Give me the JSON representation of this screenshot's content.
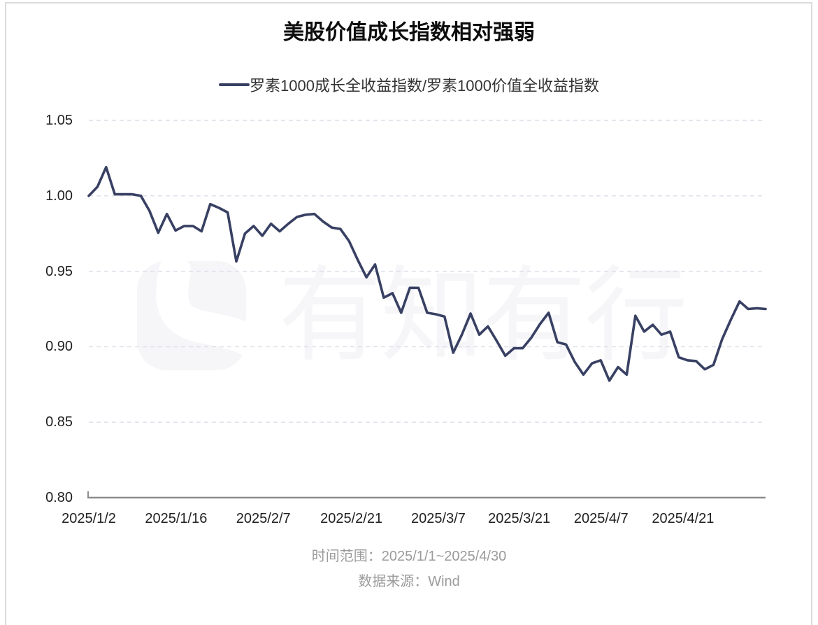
{
  "page": {
    "title": "美股价值成长指数相对强弱",
    "watermark_text": "有知有行",
    "footer": {
      "time_range": "时间范围：2025/1/1~2025/4/30",
      "source": "数据来源：Wind"
    }
  },
  "legend": {
    "label": "罗素1000成长全收益指数/罗素1000价值全收益指数"
  },
  "colors": {
    "line": "#384063",
    "grid": "#dcdee8",
    "axis": "#8c8c8c",
    "tick_text": "#1f1f1f",
    "footer_text": "#9b9b9b",
    "panel_border": "#dbdbdb",
    "watermark": "#f6f6f9"
  },
  "chart_data": {
    "type": "line",
    "title": "美股价值成长指数相对强弱",
    "x_range": [
      "2025/1/2",
      "2025/4/30"
    ],
    "x_tick_labels": [
      {
        "label": "2025/1/2",
        "pos": 0.0
      },
      {
        "label": "2025/1/16",
        "pos": 0.129
      },
      {
        "label": "2025/2/7",
        "pos": 0.258
      },
      {
        "label": "2025/2/21",
        "pos": 0.388
      },
      {
        "label": "2025/3/7",
        "pos": 0.5165
      },
      {
        "label": "2025/3/21",
        "pos": 0.636
      },
      {
        "label": "2025/4/7",
        "pos": 0.757
      },
      {
        "label": "2025/4/21",
        "pos": 0.878
      }
    ],
    "y_ticks": [
      0.8,
      0.85,
      0.9,
      0.95,
      1.0,
      1.05
    ],
    "y_tick_labels": [
      "0.80",
      "0.85",
      "0.90",
      "0.95",
      "1.00",
      "1.05"
    ],
    "ylim": [
      0.8,
      1.05
    ],
    "grid": "horizontal-dashed",
    "legend_position": "top-center",
    "series": [
      {
        "name": "罗素1000成长全收益指数/罗素1000价值全收益指数",
        "values": [
          1.0,
          1.006,
          1.019,
          1.001,
          1.001,
          1.001,
          1.0,
          0.99,
          0.9755,
          0.988,
          0.977,
          0.98,
          0.98,
          0.9765,
          0.9945,
          0.992,
          0.989,
          0.9565,
          0.975,
          0.98,
          0.9735,
          0.9815,
          0.9765,
          0.9815,
          0.986,
          0.9875,
          0.988,
          0.983,
          0.979,
          0.978,
          0.97,
          0.9575,
          0.946,
          0.9545,
          0.9325,
          0.9355,
          0.9225,
          0.939,
          0.939,
          0.9225,
          0.9215,
          0.92,
          0.896,
          0.908,
          0.922,
          0.908,
          0.9135,
          0.904,
          0.894,
          0.899,
          0.899,
          0.906,
          0.915,
          0.9225,
          0.903,
          0.9015,
          0.89,
          0.8815,
          0.889,
          0.891,
          0.8775,
          0.8865,
          0.8815,
          0.9205,
          0.91,
          0.9145,
          0.908,
          0.91,
          0.893,
          0.891,
          0.8905,
          0.885,
          0.888,
          0.905,
          0.918,
          0.93,
          0.925,
          0.9255,
          0.925
        ]
      }
    ]
  }
}
